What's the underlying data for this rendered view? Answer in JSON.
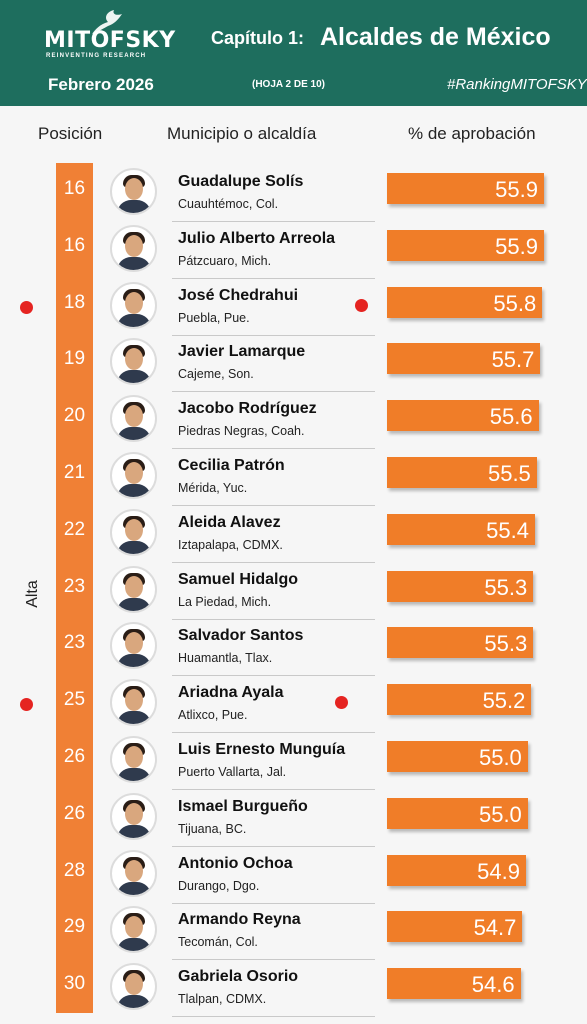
{
  "header": {
    "logo_text": "MITOFSKY",
    "logo_tagline": "Reinventing Research",
    "chapter": "Capítulo 1:",
    "title": "Alcaldes de México",
    "date": "Febrero  2026",
    "sheet": "(HOJA 2 DE 10)",
    "hashtag": "#RankingMITOFSKY"
  },
  "columns": {
    "position": "Posición",
    "municipality": "Municipio o alcaldía",
    "approval": "% de aprobación"
  },
  "side_label": "Alta",
  "colors": {
    "header_bg": "#1e6e5e",
    "bar": "#f07d28",
    "position_band": "#f08035",
    "marker": "#e52421"
  },
  "chart_data": {
    "type": "bar",
    "orientation": "horizontal",
    "value_label": "% de aprobación",
    "rows": [
      {
        "position": "16",
        "name": "Guadalupe Solís",
        "place": "Cuauhtémoc, Col.",
        "value": 55.9,
        "value_text": "55.9",
        "marked": false
      },
      {
        "position": "16",
        "name": "Julio Alberto Arreola",
        "place": "Pátzcuaro, Mich.",
        "value": 55.9,
        "value_text": "55.9",
        "marked": false
      },
      {
        "position": "18",
        "name": "José Chedrahui",
        "place": "Puebla, Pue.",
        "value": 55.8,
        "value_text": "55.8",
        "marked": true
      },
      {
        "position": "19",
        "name": "Javier Lamarque",
        "place": "Cajeme, Son.",
        "value": 55.7,
        "value_text": "55.7",
        "marked": false
      },
      {
        "position": "20",
        "name": "Jacobo Rodríguez",
        "place": "Piedras Negras, Coah.",
        "value": 55.6,
        "value_text": "55.6",
        "marked": false
      },
      {
        "position": "21",
        "name": "Cecilia Patrón",
        "place": "Mérida, Yuc.",
        "value": 55.5,
        "value_text": "55.5",
        "marked": false
      },
      {
        "position": "22",
        "name": "Aleida Alavez",
        "place": "Iztapalapa, CDMX.",
        "value": 55.4,
        "value_text": "55.4",
        "marked": false
      },
      {
        "position": "23",
        "name": "Samuel Hidalgo",
        "place": "La Piedad, Mich.",
        "value": 55.3,
        "value_text": "55.3",
        "marked": false
      },
      {
        "position": "23",
        "name": "Salvador Santos",
        "place": "Huamantla, Tlax.",
        "value": 55.3,
        "value_text": "55.3",
        "marked": false
      },
      {
        "position": "25",
        "name": "Ariadna Ayala",
        "place": "Atlixco, Pue.",
        "value": 55.2,
        "value_text": "55.2",
        "marked": true
      },
      {
        "position": "26",
        "name": "Luis Ernesto Munguía",
        "place": "Puerto Vallarta, Jal.",
        "value": 55.0,
        "value_text": "55.0",
        "marked": false
      },
      {
        "position": "26",
        "name": "Ismael Burgueño",
        "place": "Tijuana, BC.",
        "value": 55.0,
        "value_text": "55.0",
        "marked": false
      },
      {
        "position": "28",
        "name": "Antonio Ochoa",
        "place": "Durango, Dgo.",
        "value": 54.9,
        "value_text": "54.9",
        "marked": false
      },
      {
        "position": "29",
        "name": "Armando Reyna",
        "place": "Tecomán, Col.",
        "value": 54.7,
        "value_text": "54.7",
        "marked": false
      },
      {
        "position": "30",
        "name": "Gabriela Osorio",
        "place": "Tlalpan, CDMX.",
        "value": 54.6,
        "value_text": "54.6",
        "marked": false
      }
    ]
  }
}
